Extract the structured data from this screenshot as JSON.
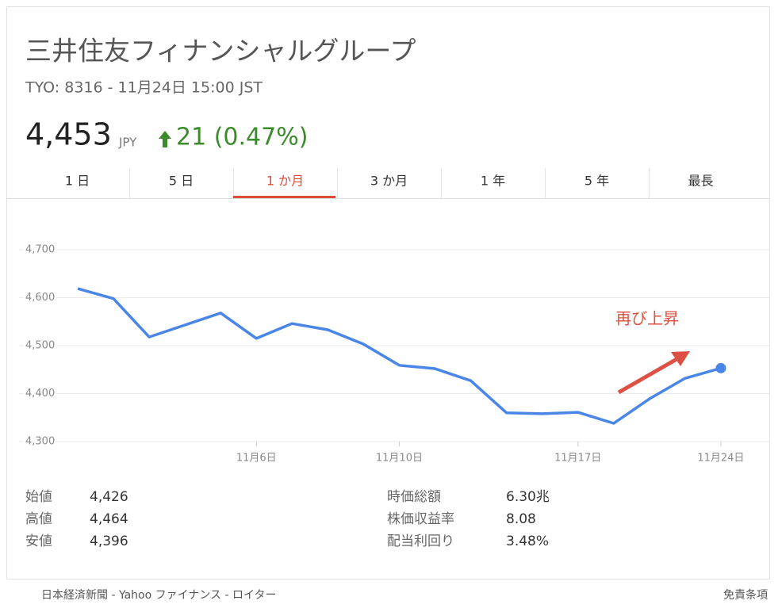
{
  "header": {
    "title": "三井住友フィナンシャルグループ",
    "subtitle": "TYO: 8316 - 11月24日 15:00 JST",
    "price": "4,453",
    "currency": "JPY",
    "change": "21 (0.47%)"
  },
  "tabs": [
    {
      "label": "1 日"
    },
    {
      "label": "5 日"
    },
    {
      "label": "1 か月",
      "selected": true
    },
    {
      "label": "3 か月"
    },
    {
      "label": "1 年"
    },
    {
      "label": "5 年"
    },
    {
      "label": "最長"
    }
  ],
  "chart_data": {
    "type": "line",
    "color": "#4a86e8",
    "grid": true,
    "annotation": "再び上昇",
    "categories": [
      null,
      null,
      null,
      null,
      null,
      "11月6日",
      null,
      null,
      null,
      "11月10日",
      null,
      null,
      null,
      null,
      "11月17日",
      null,
      null,
      null,
      "11月24日"
    ],
    "values": [
      4619,
      4598,
      4518,
      4543,
      4568,
      4515,
      4546,
      4533,
      4503,
      4459,
      4452,
      4427,
      4360,
      4358,
      4361,
      4338,
      4389,
      4432,
      4453
    ],
    "ylim": [
      4300,
      4700
    ],
    "yticks": [
      {
        "value": 4300,
        "label": "4,300"
      },
      {
        "value": 4400,
        "label": "4,400"
      },
      {
        "value": 4500,
        "label": "4,500"
      },
      {
        "value": 4600,
        "label": "4,600"
      },
      {
        "value": 4700,
        "label": "4,700"
      }
    ]
  },
  "stats": {
    "left": [
      [
        "始値",
        "4,426"
      ],
      [
        "高値",
        "4,464"
      ],
      [
        "安値",
        "4,396"
      ]
    ],
    "right": [
      [
        "時価総額",
        "6.30兆"
      ],
      [
        "株価収益率",
        "8.08"
      ],
      [
        "配当利回り",
        "3.48%"
      ]
    ]
  },
  "footer": {
    "sources": "日本経済新聞 - Yahoo ファイナンス - ロイター",
    "disclaimer": "免責条項"
  }
}
